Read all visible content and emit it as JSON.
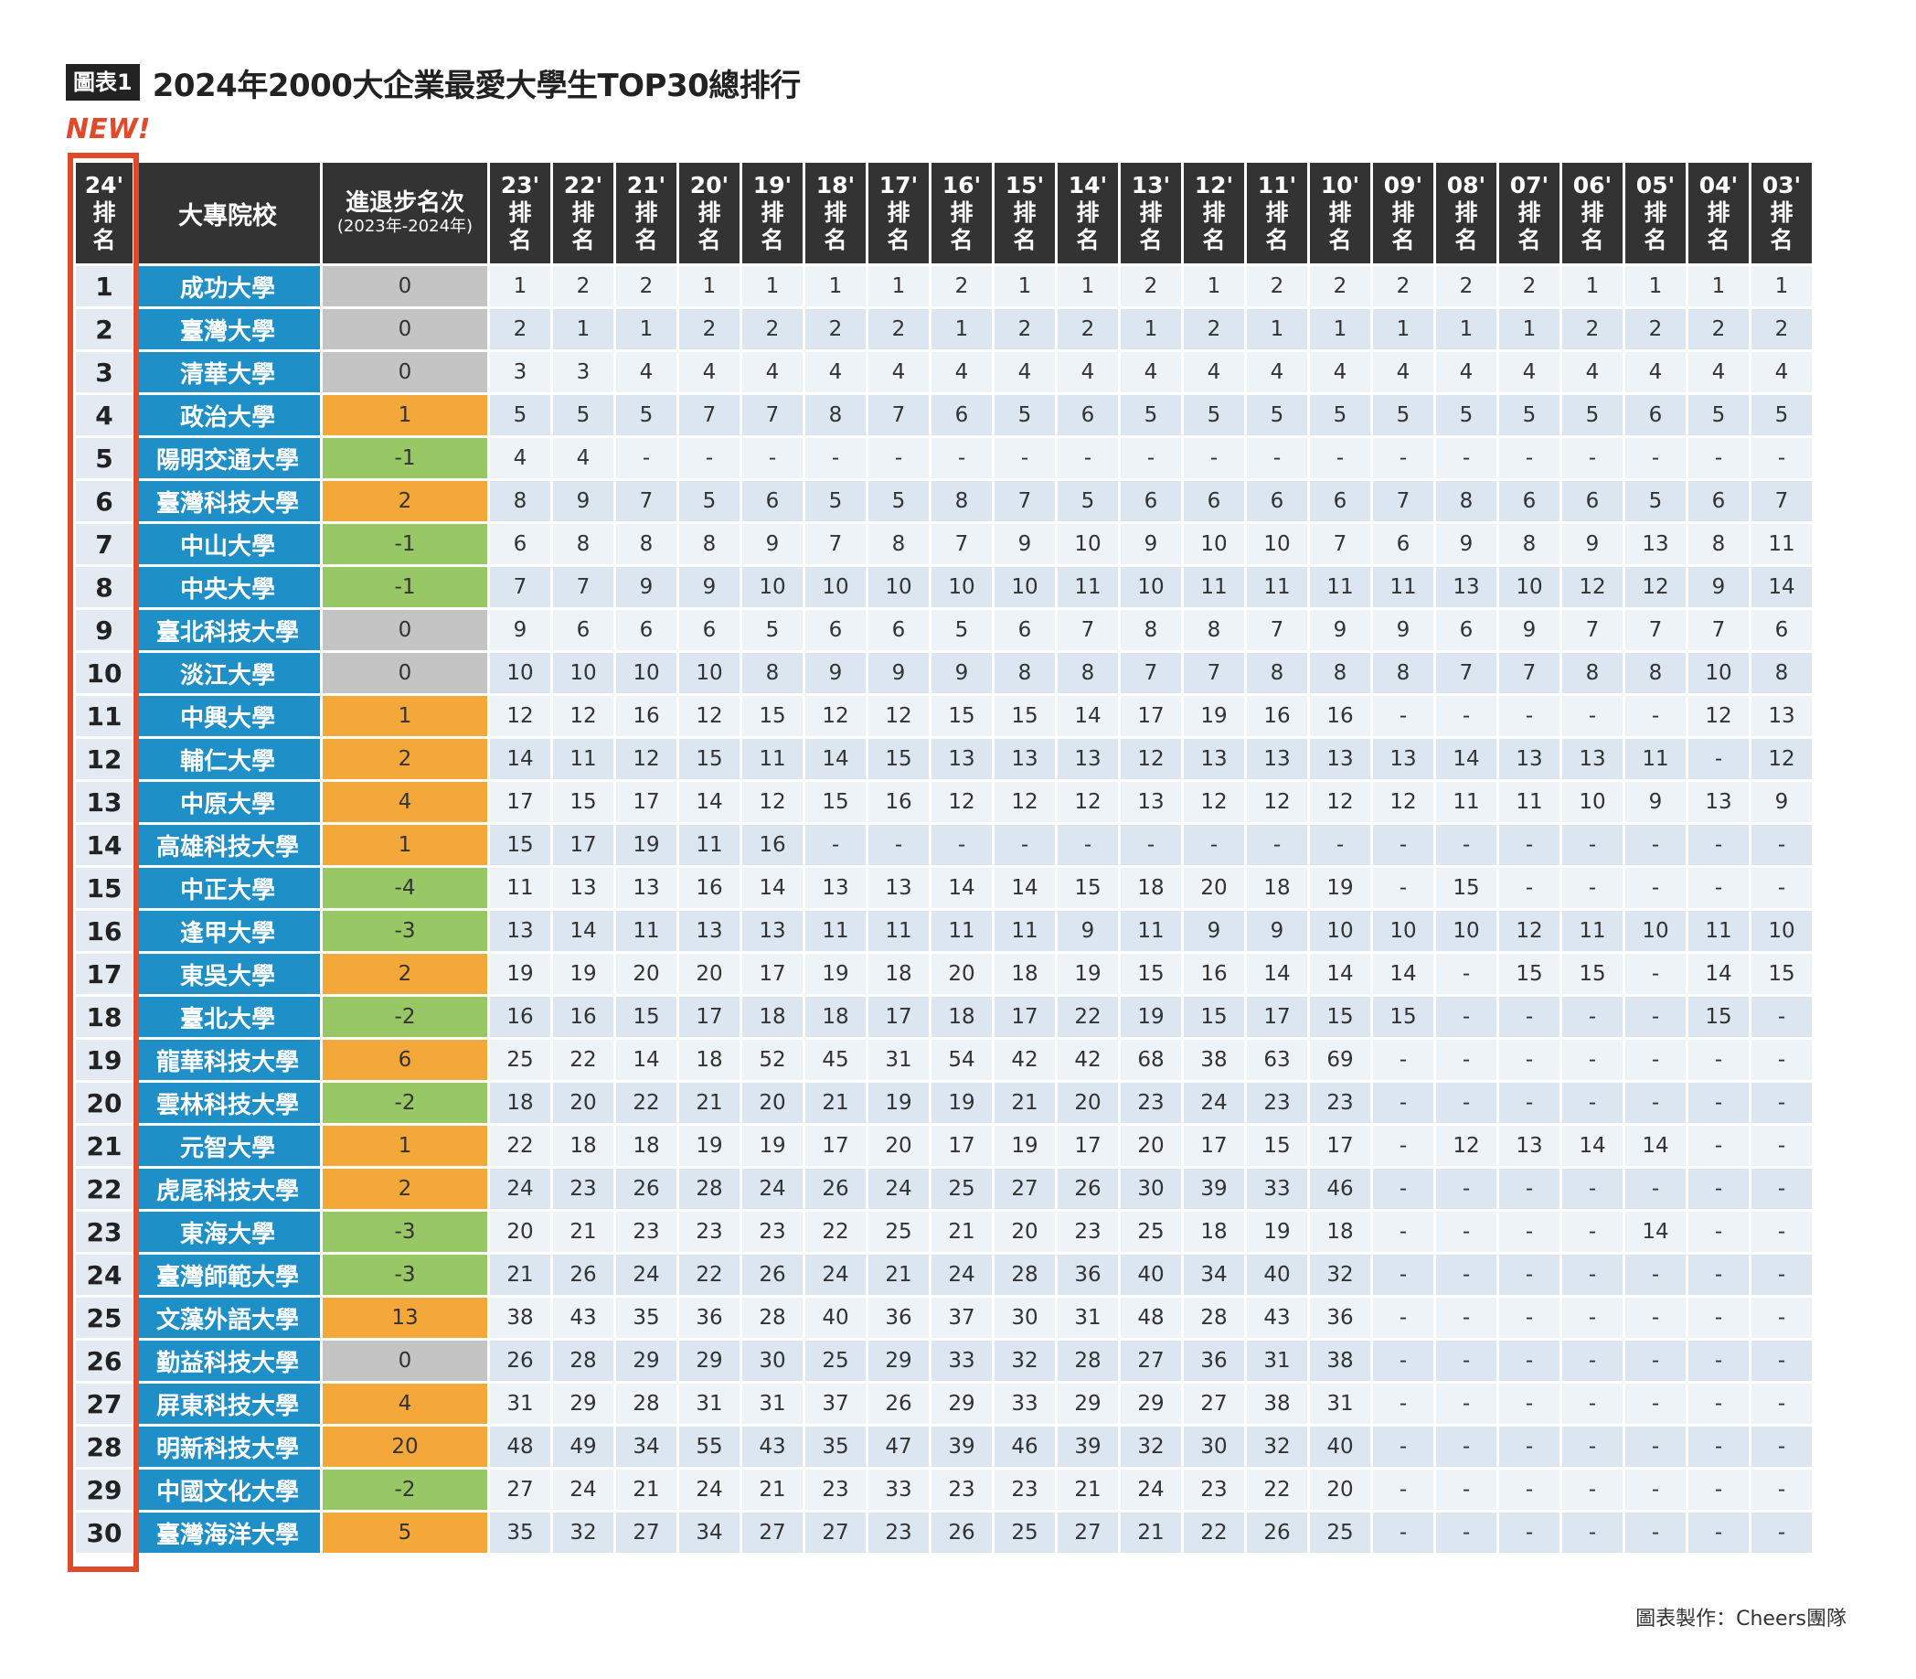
{
  "title_tag": "圖表1",
  "title": "2024年2000大企業最愛大學生TOP30總排行",
  "new_badge": "NEW!",
  "credit": "圖表製作：Cheers團隊",
  "colors": {
    "up": "#f5a83a",
    "down": "#98c766",
    "same": "#c4c4c4",
    "school": "#1f8fc7",
    "header": "#333333",
    "frame": "#e04a2b"
  },
  "chart_data": {
    "type": "table",
    "headers": {
      "rank": "24'排名",
      "school": "大專院校",
      "change": "進退步名次",
      "change_sub": "(2023年-2024年)",
      "years": [
        "23'",
        "22'",
        "21'",
        "20'",
        "19'",
        "18'",
        "17'",
        "16'",
        "15'",
        "14'",
        "13'",
        "12'",
        "11'",
        "10'",
        "09'",
        "08'",
        "07'",
        "06'",
        "05'",
        "04'",
        "03'"
      ],
      "year_suffix": "排名"
    },
    "rows": [
      {
        "rank": "1",
        "school": "成功大學",
        "change": "0",
        "history": [
          "1",
          "2",
          "2",
          "1",
          "1",
          "1",
          "1",
          "2",
          "1",
          "1",
          "2",
          "1",
          "2",
          "2",
          "2",
          "2",
          "2",
          "1",
          "1",
          "1",
          "1"
        ]
      },
      {
        "rank": "2",
        "school": "臺灣大學",
        "change": "0",
        "history": [
          "2",
          "1",
          "1",
          "2",
          "2",
          "2",
          "2",
          "1",
          "2",
          "2",
          "1",
          "2",
          "1",
          "1",
          "1",
          "1",
          "1",
          "2",
          "2",
          "2",
          "2"
        ]
      },
      {
        "rank": "3",
        "school": "清華大學",
        "change": "0",
        "history": [
          "3",
          "3",
          "4",
          "4",
          "4",
          "4",
          "4",
          "4",
          "4",
          "4",
          "4",
          "4",
          "4",
          "4",
          "4",
          "4",
          "4",
          "4",
          "4",
          "4",
          "4"
        ]
      },
      {
        "rank": "4",
        "school": "政治大學",
        "change": "1",
        "history": [
          "5",
          "5",
          "5",
          "7",
          "7",
          "8",
          "7",
          "6",
          "5",
          "6",
          "5",
          "5",
          "5",
          "5",
          "5",
          "5",
          "5",
          "5",
          "6",
          "5",
          "5"
        ]
      },
      {
        "rank": "5",
        "school": "陽明交通大學",
        "change": "-1",
        "history": [
          "4",
          "4",
          "-",
          "-",
          "-",
          "-",
          "-",
          "-",
          "-",
          "-",
          "-",
          "-",
          "-",
          "-",
          "-",
          "-",
          "-",
          "-",
          "-",
          "-",
          "-"
        ]
      },
      {
        "rank": "6",
        "school": "臺灣科技大學",
        "change": "2",
        "history": [
          "8",
          "9",
          "7",
          "5",
          "6",
          "5",
          "5",
          "8",
          "7",
          "5",
          "6",
          "6",
          "6",
          "6",
          "7",
          "8",
          "6",
          "6",
          "5",
          "6",
          "7"
        ]
      },
      {
        "rank": "7",
        "school": "中山大學",
        "change": "-1",
        "history": [
          "6",
          "8",
          "8",
          "8",
          "9",
          "7",
          "8",
          "7",
          "9",
          "10",
          "9",
          "10",
          "10",
          "7",
          "6",
          "9",
          "8",
          "9",
          "13",
          "8",
          "11"
        ]
      },
      {
        "rank": "8",
        "school": "中央大學",
        "change": "-1",
        "history": [
          "7",
          "7",
          "9",
          "9",
          "10",
          "10",
          "10",
          "10",
          "10",
          "11",
          "10",
          "11",
          "11",
          "11",
          "11",
          "13",
          "10",
          "12",
          "12",
          "9",
          "14"
        ]
      },
      {
        "rank": "9",
        "school": "臺北科技大學",
        "change": "0",
        "history": [
          "9",
          "6",
          "6",
          "6",
          "5",
          "6",
          "6",
          "5",
          "6",
          "7",
          "8",
          "8",
          "7",
          "9",
          "9",
          "6",
          "9",
          "7",
          "7",
          "7",
          "6"
        ]
      },
      {
        "rank": "10",
        "school": "淡江大學",
        "change": "0",
        "history": [
          "10",
          "10",
          "10",
          "10",
          "8",
          "9",
          "9",
          "9",
          "8",
          "8",
          "7",
          "7",
          "8",
          "8",
          "8",
          "7",
          "7",
          "8",
          "8",
          "10",
          "8"
        ]
      },
      {
        "rank": "11",
        "school": "中興大學",
        "change": "1",
        "history": [
          "12",
          "12",
          "16",
          "12",
          "15",
          "12",
          "12",
          "15",
          "15",
          "14",
          "17",
          "19",
          "16",
          "16",
          "-",
          "-",
          "-",
          "-",
          "-",
          "12",
          "13"
        ]
      },
      {
        "rank": "12",
        "school": "輔仁大學",
        "change": "2",
        "history": [
          "14",
          "11",
          "12",
          "15",
          "11",
          "14",
          "15",
          "13",
          "13",
          "13",
          "12",
          "13",
          "13",
          "13",
          "13",
          "14",
          "13",
          "13",
          "11",
          "-",
          "12"
        ]
      },
      {
        "rank": "13",
        "school": "中原大學",
        "change": "4",
        "history": [
          "17",
          "15",
          "17",
          "14",
          "12",
          "15",
          "16",
          "12",
          "12",
          "12",
          "13",
          "12",
          "12",
          "12",
          "12",
          "11",
          "11",
          "10",
          "9",
          "13",
          "9"
        ]
      },
      {
        "rank": "14",
        "school": "高雄科技大學",
        "change": "1",
        "history": [
          "15",
          "17",
          "19",
          "11",
          "16",
          "-",
          "-",
          "-",
          "-",
          "-",
          "-",
          "-",
          "-",
          "-",
          "-",
          "-",
          "-",
          "-",
          "-",
          "-",
          "-"
        ]
      },
      {
        "rank": "15",
        "school": "中正大學",
        "change": "-4",
        "history": [
          "11",
          "13",
          "13",
          "16",
          "14",
          "13",
          "13",
          "14",
          "14",
          "15",
          "18",
          "20",
          "18",
          "19",
          "-",
          "15",
          "-",
          "-",
          "-",
          "-",
          "-"
        ]
      },
      {
        "rank": "16",
        "school": "逢甲大學",
        "change": "-3",
        "history": [
          "13",
          "14",
          "11",
          "13",
          "13",
          "11",
          "11",
          "11",
          "11",
          "9",
          "11",
          "9",
          "9",
          "10",
          "10",
          "10",
          "12",
          "11",
          "10",
          "11",
          "10"
        ]
      },
      {
        "rank": "17",
        "school": "東吳大學",
        "change": "2",
        "history": [
          "19",
          "19",
          "20",
          "20",
          "17",
          "19",
          "18",
          "20",
          "18",
          "19",
          "15",
          "16",
          "14",
          "14",
          "14",
          "-",
          "15",
          "15",
          "-",
          "14",
          "15"
        ]
      },
      {
        "rank": "18",
        "school": "臺北大學",
        "change": "-2",
        "history": [
          "16",
          "16",
          "15",
          "17",
          "18",
          "18",
          "17",
          "18",
          "17",
          "22",
          "19",
          "15",
          "17",
          "15",
          "15",
          "-",
          "-",
          "-",
          "-",
          "15",
          "-"
        ]
      },
      {
        "rank": "19",
        "school": "龍華科技大學",
        "change": "6",
        "history": [
          "25",
          "22",
          "14",
          "18",
          "52",
          "45",
          "31",
          "54",
          "42",
          "42",
          "68",
          "38",
          "63",
          "69",
          "-",
          "-",
          "-",
          "-",
          "-",
          "-",
          "-"
        ]
      },
      {
        "rank": "20",
        "school": "雲林科技大學",
        "change": "-2",
        "history": [
          "18",
          "20",
          "22",
          "21",
          "20",
          "21",
          "19",
          "19",
          "21",
          "20",
          "23",
          "24",
          "23",
          "23",
          "-",
          "-",
          "-",
          "-",
          "-",
          "-",
          "-"
        ]
      },
      {
        "rank": "21",
        "school": "元智大學",
        "change": "1",
        "history": [
          "22",
          "18",
          "18",
          "19",
          "19",
          "17",
          "20",
          "17",
          "19",
          "17",
          "20",
          "17",
          "15",
          "17",
          "-",
          "12",
          "13",
          "14",
          "14",
          "-",
          "-"
        ]
      },
      {
        "rank": "22",
        "school": "虎尾科技大學",
        "change": "2",
        "history": [
          "24",
          "23",
          "26",
          "28",
          "24",
          "26",
          "24",
          "25",
          "27",
          "26",
          "30",
          "39",
          "33",
          "46",
          "-",
          "-",
          "-",
          "-",
          "-",
          "-",
          "-"
        ]
      },
      {
        "rank": "23",
        "school": "東海大學",
        "change": "-3",
        "history": [
          "20",
          "21",
          "23",
          "23",
          "23",
          "22",
          "25",
          "21",
          "20",
          "23",
          "25",
          "18",
          "19",
          "18",
          "-",
          "-",
          "-",
          "-",
          "14",
          "-",
          "-"
        ]
      },
      {
        "rank": "24",
        "school": "臺灣師範大學",
        "change": "-3",
        "history": [
          "21",
          "26",
          "24",
          "22",
          "26",
          "24",
          "21",
          "24",
          "28",
          "36",
          "40",
          "34",
          "40",
          "32",
          "-",
          "-",
          "-",
          "-",
          "-",
          "-",
          "-"
        ]
      },
      {
        "rank": "25",
        "school": "文藻外語大學",
        "change": "13",
        "history": [
          "38",
          "43",
          "35",
          "36",
          "28",
          "40",
          "36",
          "37",
          "30",
          "31",
          "48",
          "28",
          "43",
          "36",
          "-",
          "-",
          "-",
          "-",
          "-",
          "-",
          "-"
        ]
      },
      {
        "rank": "26",
        "school": "勤益科技大學",
        "change": "0",
        "history": [
          "26",
          "28",
          "29",
          "29",
          "30",
          "25",
          "29",
          "33",
          "32",
          "28",
          "27",
          "36",
          "31",
          "38",
          "-",
          "-",
          "-",
          "-",
          "-",
          "-",
          "-"
        ]
      },
      {
        "rank": "27",
        "school": "屏東科技大學",
        "change": "4",
        "history": [
          "31",
          "29",
          "28",
          "31",
          "31",
          "37",
          "26",
          "29",
          "33",
          "29",
          "29",
          "27",
          "38",
          "31",
          "-",
          "-",
          "-",
          "-",
          "-",
          "-",
          "-"
        ]
      },
      {
        "rank": "28",
        "school": "明新科技大學",
        "change": "20",
        "history": [
          "48",
          "49",
          "34",
          "55",
          "43",
          "35",
          "47",
          "39",
          "46",
          "39",
          "32",
          "30",
          "32",
          "40",
          "-",
          "-",
          "-",
          "-",
          "-",
          "-",
          "-"
        ]
      },
      {
        "rank": "29",
        "school": "中國文化大學",
        "change": "-2",
        "history": [
          "27",
          "24",
          "21",
          "24",
          "21",
          "23",
          "33",
          "23",
          "23",
          "21",
          "24",
          "23",
          "22",
          "20",
          "-",
          "-",
          "-",
          "-",
          "-",
          "-",
          "-"
        ]
      },
      {
        "rank": "30",
        "school": "臺灣海洋大學",
        "change": "5",
        "history": [
          "35",
          "32",
          "27",
          "34",
          "27",
          "27",
          "23",
          "26",
          "25",
          "27",
          "21",
          "22",
          "26",
          "25",
          "-",
          "-",
          "-",
          "-",
          "-",
          "-",
          "-"
        ]
      }
    ]
  }
}
